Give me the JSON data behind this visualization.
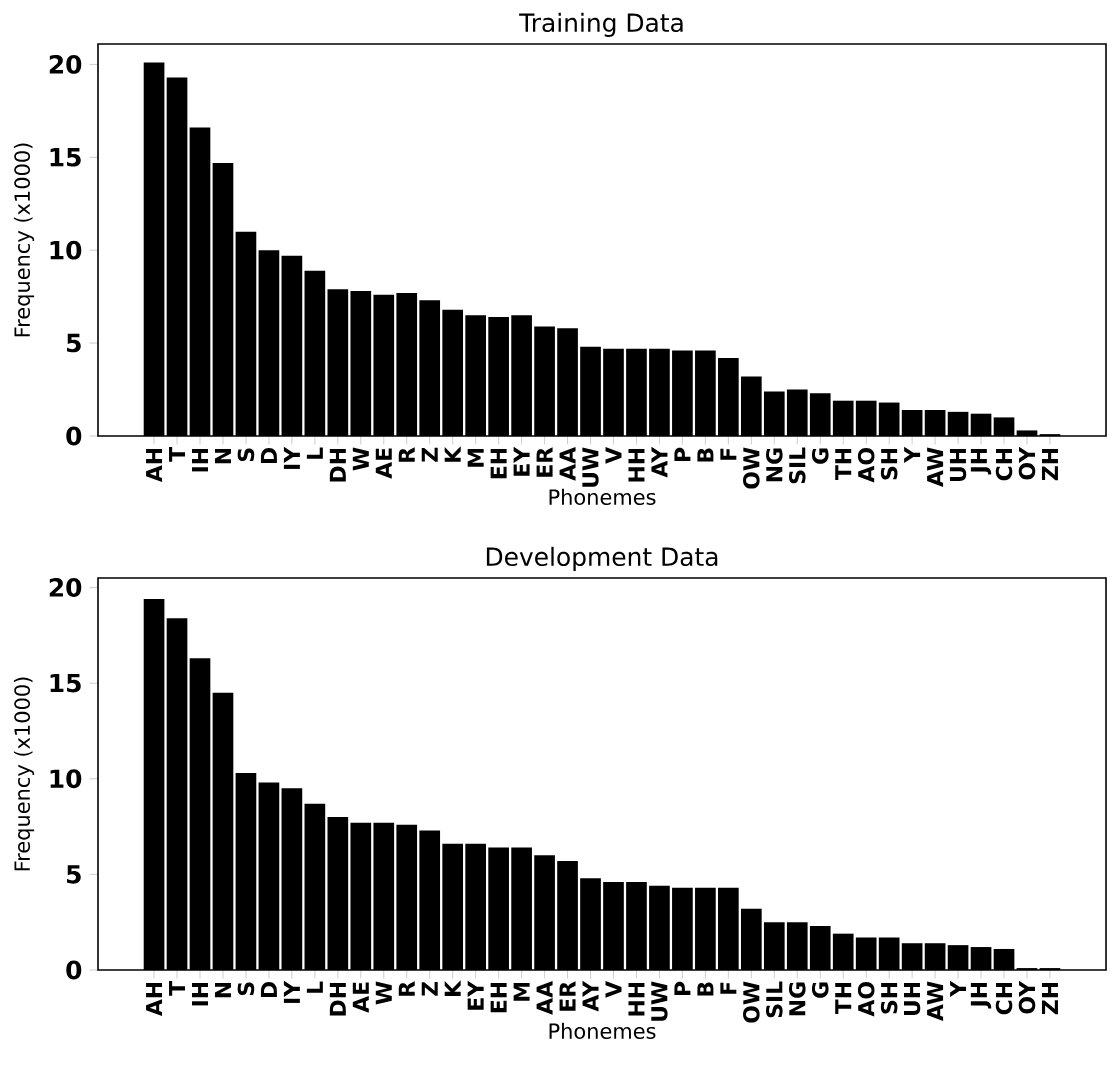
{
  "chart_data": [
    {
      "type": "bar",
      "title": "Training Data",
      "xlabel": "Phonemes",
      "ylabel": "Frequency (x1000)",
      "categories": [
        "AH",
        "T",
        "IH",
        "N",
        "S",
        "D",
        "IY",
        "L",
        "DH",
        "W",
        "AE",
        "R",
        "Z",
        "K",
        "M",
        "EH",
        "EY",
        "ER",
        "AA",
        "UW",
        "V",
        "HH",
        "AY",
        "P",
        "B",
        "F",
        "OW",
        "NG",
        "SIL",
        "G",
        "TH",
        "AO",
        "SH",
        "Y",
        "AW",
        "UH",
        "JH",
        "CH",
        "OY",
        "ZH"
      ],
      "values": [
        20.1,
        19.3,
        16.6,
        14.7,
        11.0,
        10.0,
        9.7,
        8.9,
        7.9,
        7.8,
        7.6,
        7.7,
        7.3,
        6.8,
        6.5,
        6.4,
        6.5,
        5.9,
        5.8,
        4.8,
        4.7,
        4.7,
        4.7,
        4.6,
        4.6,
        4.2,
        3.2,
        2.4,
        2.5,
        2.3,
        1.9,
        1.9,
        1.8,
        1.4,
        1.4,
        1.3,
        1.2,
        1.0,
        0.3,
        0.1
      ],
      "color": "#000000",
      "ylim": [
        0,
        21.1
      ],
      "yticks": [
        0,
        5,
        10,
        15,
        20
      ]
    },
    {
      "type": "bar",
      "title": "Development Data",
      "xlabel": "Phonemes",
      "ylabel": "Frequency (x1000)",
      "categories": [
        "AH",
        "T",
        "IH",
        "N",
        "S",
        "D",
        "IY",
        "L",
        "DH",
        "AE",
        "W",
        "R",
        "Z",
        "K",
        "EY",
        "EH",
        "M",
        "AA",
        "ER",
        "AY",
        "V",
        "HH",
        "UW",
        "P",
        "B",
        "F",
        "OW",
        "SIL",
        "NG",
        "G",
        "TH",
        "AO",
        "SH",
        "UH",
        "AW",
        "Y",
        "JH",
        "CH",
        "OY",
        "ZH"
      ],
      "values": [
        19.4,
        18.4,
        16.3,
        14.5,
        10.3,
        9.8,
        9.5,
        8.7,
        8.0,
        7.7,
        7.7,
        7.6,
        7.3,
        6.6,
        6.6,
        6.4,
        6.4,
        6.0,
        5.7,
        4.8,
        4.6,
        4.6,
        4.4,
        4.3,
        4.3,
        4.3,
        3.2,
        2.5,
        2.5,
        2.3,
        1.9,
        1.7,
        1.7,
        1.4,
        1.4,
        1.3,
        1.2,
        1.1,
        0.1,
        0.1
      ],
      "color": "#000000",
      "ylim": [
        0,
        20.5
      ],
      "yticks": [
        0,
        5,
        10,
        15,
        20
      ]
    }
  ]
}
